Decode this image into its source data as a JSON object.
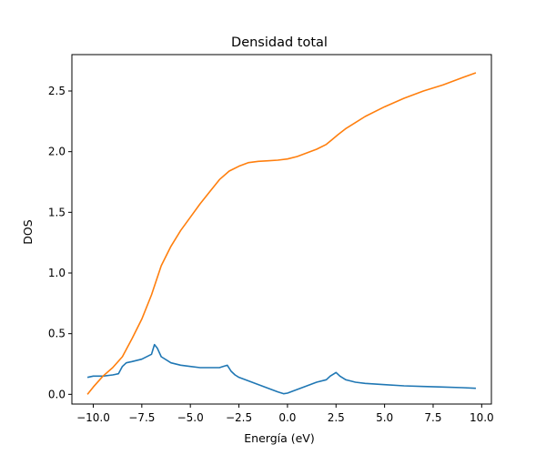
{
  "chart_data": {
    "type": "line",
    "title": "Densidad total",
    "xlabel": "Energía (eV)",
    "ylabel": "DOS",
    "xlim": [
      -11.1,
      10.5
    ],
    "ylim": [
      -0.08,
      2.8
    ],
    "xticks": [
      -10.0,
      -7.5,
      -5.0,
      -2.5,
      0.0,
      2.5,
      5.0,
      7.5,
      10.0
    ],
    "xtick_labels": [
      "−10.0",
      "−7.5",
      "−5.0",
      "−2.5",
      "0.0",
      "2.5",
      "5.0",
      "7.5",
      "10.0"
    ],
    "yticks": [
      0.0,
      0.5,
      1.0,
      1.5,
      2.0,
      2.5
    ],
    "ytick_labels": [
      "0.0",
      "0.5",
      "1.0",
      "1.5",
      "2.0",
      "2.5"
    ],
    "grid": false,
    "series": [
      {
        "color": "#1f77b4",
        "x": [
          -10.3,
          -10.0,
          -9.5,
          -9.0,
          -8.7,
          -8.5,
          -8.3,
          -8.0,
          -7.5,
          -7.0,
          -6.85,
          -6.7,
          -6.5,
          -6.0,
          -5.5,
          -5.0,
          -4.5,
          -4.0,
          -3.5,
          -3.3,
          -3.1,
          -2.9,
          -2.7,
          -2.5,
          -2.0,
          -1.5,
          -1.0,
          -0.5,
          -0.2,
          0.0,
          0.5,
          1.0,
          1.5,
          2.0,
          2.2,
          2.4,
          2.5,
          2.7,
          3.0,
          3.5,
          4.0,
          5.0,
          6.0,
          7.0,
          8.0,
          9.0,
          9.7
        ],
        "y": [
          0.14,
          0.15,
          0.15,
          0.16,
          0.17,
          0.23,
          0.26,
          0.27,
          0.29,
          0.33,
          0.41,
          0.38,
          0.31,
          0.26,
          0.24,
          0.23,
          0.22,
          0.22,
          0.22,
          0.23,
          0.24,
          0.19,
          0.16,
          0.14,
          0.11,
          0.08,
          0.05,
          0.02,
          0.005,
          0.01,
          0.04,
          0.07,
          0.1,
          0.12,
          0.15,
          0.17,
          0.18,
          0.15,
          0.12,
          0.1,
          0.09,
          0.08,
          0.07,
          0.065,
          0.06,
          0.055,
          0.05
        ]
      },
      {
        "color": "#ff7f0e",
        "x": [
          -10.3,
          -10.0,
          -9.5,
          -9.0,
          -8.5,
          -8.0,
          -7.5,
          -7.0,
          -6.5,
          -6.0,
          -5.5,
          -5.0,
          -4.5,
          -4.0,
          -3.5,
          -3.0,
          -2.5,
          -2.0,
          -1.5,
          -1.0,
          -0.5,
          0.0,
          0.5,
          1.0,
          1.5,
          2.0,
          2.3,
          2.6,
          3.0,
          3.5,
          4.0,
          5.0,
          6.0,
          7.0,
          8.0,
          9.0,
          9.7
        ],
        "y": [
          0.0,
          0.06,
          0.15,
          0.22,
          0.31,
          0.46,
          0.62,
          0.82,
          1.06,
          1.22,
          1.35,
          1.46,
          1.57,
          1.67,
          1.77,
          1.84,
          1.88,
          1.91,
          1.92,
          1.925,
          1.93,
          1.94,
          1.96,
          1.99,
          2.02,
          2.06,
          2.1,
          2.14,
          2.19,
          2.24,
          2.29,
          2.37,
          2.44,
          2.5,
          2.55,
          2.61,
          2.65
        ]
      }
    ]
  }
}
